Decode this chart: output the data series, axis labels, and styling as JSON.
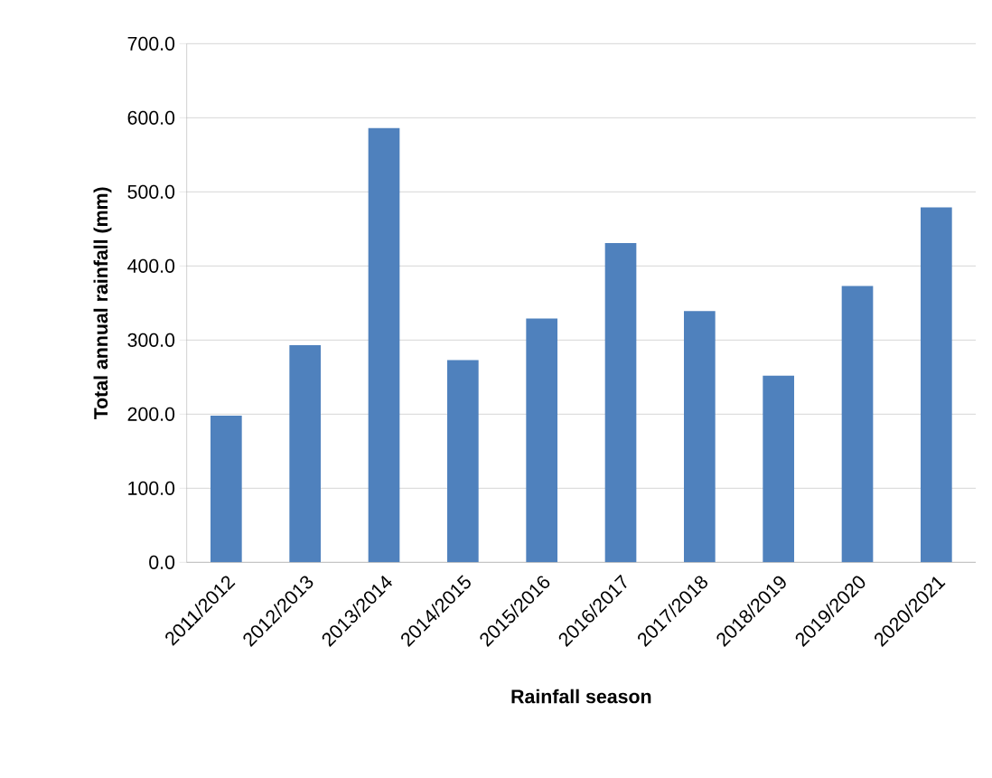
{
  "chart_data": {
    "type": "bar",
    "xlabel": "Rainfall season",
    "ylabel": "Total annual rainfall (mm)",
    "categories": [
      "2011/2012",
      "2012/2013",
      "2013/2014",
      "2014/2015",
      "2015/2016",
      "2016/2017",
      "2017/2018",
      "2018/2019",
      "2019/2020",
      "2020/2021"
    ],
    "values": [
      198,
      293,
      586,
      273,
      329,
      431,
      339,
      252,
      373,
      479
    ],
    "color": "#4f81bd",
    "ylim": [
      0,
      700
    ],
    "yticks": [
      {
        "value": 0,
        "label": "0.0"
      },
      {
        "value": 100,
        "label": "100.0"
      },
      {
        "value": 200,
        "label": "200.0"
      },
      {
        "value": 300,
        "label": "300.0"
      },
      {
        "value": 400,
        "label": "400.0"
      },
      {
        "value": 500,
        "label": "500.0"
      },
      {
        "value": 600,
        "label": "600.0"
      },
      {
        "value": 700,
        "label": "700.0"
      }
    ],
    "grid": "y"
  }
}
